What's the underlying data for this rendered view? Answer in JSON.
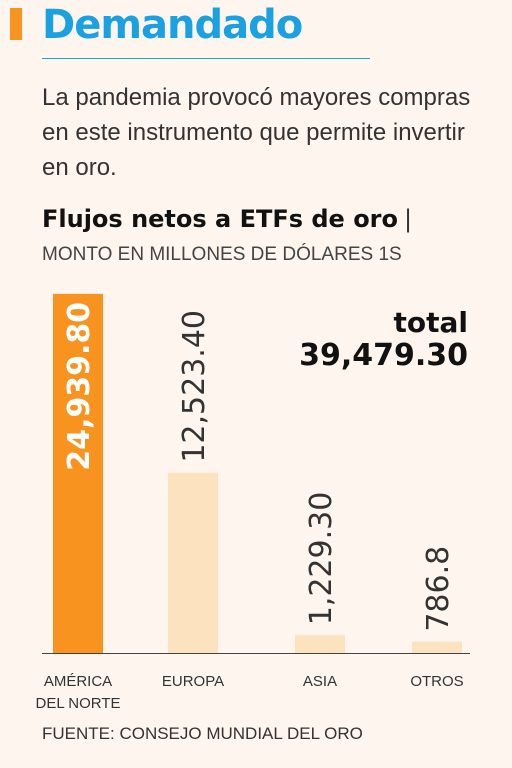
{
  "header": {
    "title": "Demandado",
    "subtitle": "La pandemia provocó mayores compras en este instrumento que permite invertir en oro."
  },
  "total": {
    "label": "total",
    "value": "39,479.30"
  },
  "source": "FUENTE: CONSEJO MUNDIAL DEL ORO",
  "colors": {
    "accent": "#f7931e",
    "title_blue": "#1aa1e1",
    "bar_primary": "#f7931e",
    "bar_secondary": "#fde2bf"
  },
  "chart_data": {
    "type": "bar",
    "title": "Flujos netos a ETFs de oro",
    "title_separator": "|",
    "subtitle": "MONTO EN MILLONES DE DÓLARES 1S",
    "categories": [
      "AMÉRICA DEL NORTE",
      "EUROPA",
      "ASIA",
      "OTROS"
    ],
    "values": [
      24939.8,
      12523.4,
      1229.3,
      786.8
    ],
    "value_labels": [
      "24,939.80",
      "12,523.40",
      "1,229.30",
      "786.8"
    ],
    "highlight_index": 0,
    "ylim": [
      0,
      25000
    ],
    "grid": false,
    "legend": "none"
  }
}
